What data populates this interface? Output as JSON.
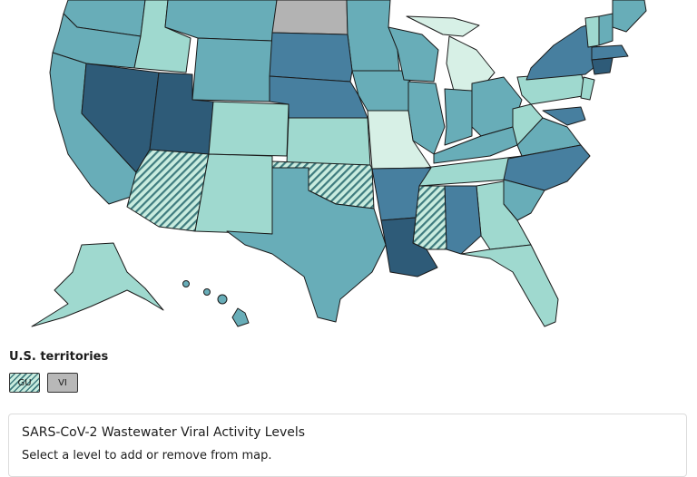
{
  "territories": {
    "title": "U.S. territories",
    "items": [
      {
        "label": "GU",
        "pattern": "hatched"
      },
      {
        "label": "VI",
        "pattern": "no-data"
      }
    ]
  },
  "legend": {
    "title": "SARS-CoV-2 Wastewater Viral Activity Levels",
    "subtitle": "Select a level to add or remove from map."
  },
  "colors": {
    "minimal": "#d7f0e6",
    "low": "#9fd9cf",
    "moderate": "#68adb8",
    "high": "#477f9f",
    "very_high": "#2e5b78",
    "no_data": "#b3b3b3",
    "hatch": "#3e7b7e"
  }
}
